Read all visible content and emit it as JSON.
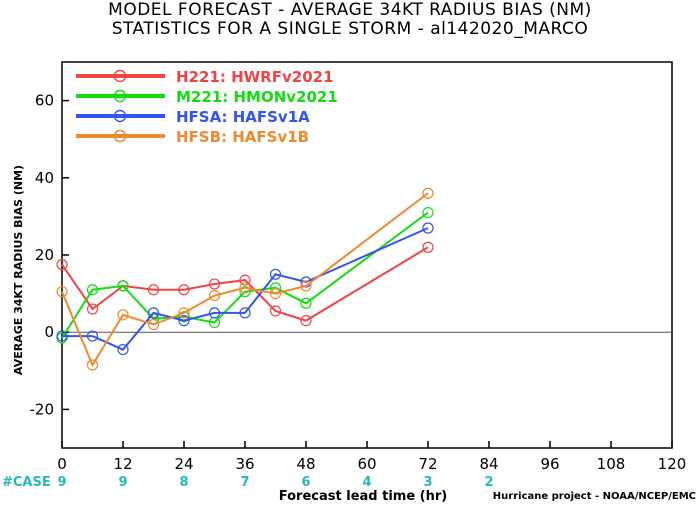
{
  "chart_data": {
    "type": "line",
    "title": [
      "MODEL FORECAST - AVERAGE 34KT RADIUS BIAS (NM)",
      "STATISTICS FOR A SINGLE STORM - al142020_MARCO"
    ],
    "xlabel": "Forecast lead time (hr)",
    "ylabel": "AVERAGE 34KT RADIUS BIAS (NM)",
    "xlim": [
      0,
      120
    ],
    "ylim": [
      -30,
      70
    ],
    "xticks": [
      0,
      12,
      24,
      36,
      48,
      60,
      72,
      84,
      96,
      108,
      120
    ],
    "yticks": [
      -20,
      0,
      20,
      40,
      60
    ],
    "legend_position": "top-left",
    "series": [
      {
        "name": "H221: HWRFv2021",
        "color": "#ee4444",
        "x": [
          0,
          6,
          12,
          18,
          24,
          30,
          36,
          42,
          48,
          72
        ],
        "y": [
          17.5,
          6,
          12,
          11,
          11,
          12.5,
          13.5,
          5.5,
          3,
          22
        ]
      },
      {
        "name": "M221: HMONv2021",
        "color": "#11dd11",
        "x": [
          0,
          6,
          12,
          18,
          24,
          30,
          36,
          42,
          48,
          72
        ],
        "y": [
          -1.5,
          11,
          12,
          3.5,
          4,
          2.5,
          10.5,
          11.5,
          7.5,
          31
        ]
      },
      {
        "name": "HFSA: HAFSv1A",
        "color": "#3355ee",
        "x": [
          0,
          6,
          12,
          18,
          24,
          30,
          36,
          42,
          48,
          72
        ],
        "y": [
          -1,
          -1,
          -4.5,
          5,
          3,
          5,
          5,
          15,
          13,
          27
        ]
      },
      {
        "name": "HFSB: HAFSv1B",
        "color": "#f08a2e",
        "x": [
          0,
          6,
          12,
          18,
          24,
          30,
          36,
          42,
          48,
          72
        ],
        "y": [
          10.5,
          -8.5,
          4.5,
          2,
          5,
          9.5,
          11.5,
          10,
          12,
          36
        ]
      }
    ],
    "cases": {
      "label": "#CASE",
      "x": [
        0,
        12,
        24,
        36,
        48,
        60,
        72,
        84
      ],
      "values": [
        "9",
        "9",
        "8",
        "7",
        "6",
        "4",
        "3",
        "2"
      ],
      "color": "#22bbbb"
    },
    "zero_line": true,
    "grid": false
  },
  "credit": "Hurricane project - NOAA/NCEP/EMC"
}
